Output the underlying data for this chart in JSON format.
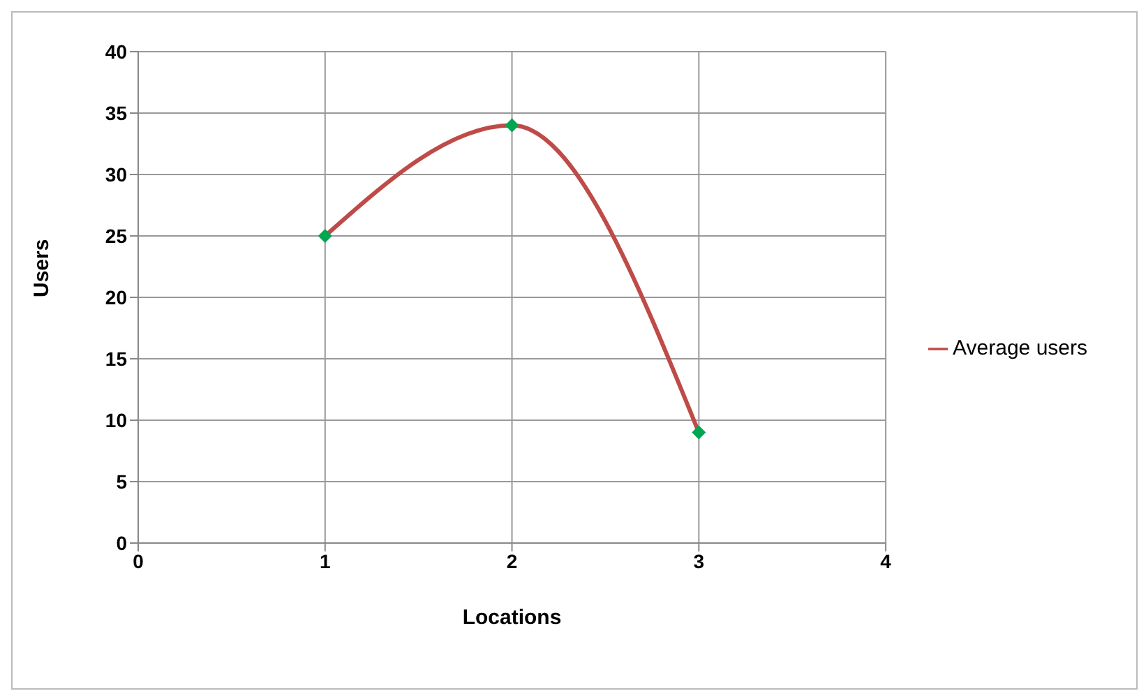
{
  "chart_data": {
    "type": "line",
    "xlabel": "Locations",
    "ylabel": "Users",
    "x": [
      1,
      2,
      3
    ],
    "series": [
      {
        "name": "Average users",
        "color": "#be4b48",
        "colors": [
          "#00a650",
          "#00a650",
          "#00a650"
        ],
        "values": [
          25,
          34,
          9
        ]
      }
    ],
    "xlim": [
      0,
      4
    ],
    "xticks": [
      0,
      1,
      2,
      3,
      4
    ],
    "ylim": [
      0,
      40
    ],
    "yticks": [
      0,
      5,
      10,
      15,
      20,
      25,
      30,
      35,
      40
    ],
    "grid": true,
    "legend": "right",
    "marker": "diamond",
    "line_style": "solid"
  }
}
